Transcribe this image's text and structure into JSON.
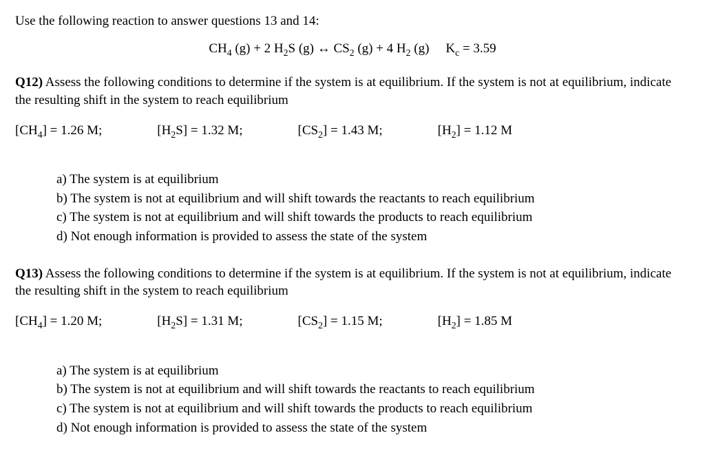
{
  "intro": "Use the following reaction to answer questions 13 and 14:",
  "equation": {
    "lhs1": "CH",
    "lhs1_sub": "4",
    "lhs1_phase": " (g) + 2 H",
    "lhs2_sub": "2",
    "lhs2": "S (g) ↔ CS",
    "rhs1_sub": "2",
    "rhs1": " (g) + 4 H",
    "rhs2_sub": "2",
    "rhs2_phase": " (g)",
    "kc_label": "K",
    "kc_sub": "c",
    "kc_val": " = 3.59"
  },
  "q12": {
    "num": "Q12)",
    "text": " Assess the following conditions to determine if the system is at equilibrium. If the system is not at equilibrium, indicate the resulting shift in the system to reach equilibrium",
    "conc": {
      "ch4": "] = 1.26 M;",
      "h2s": "S] = 1.32 M;",
      "cs2": "] = 1.43 M;",
      "h2": "] = 1.12 M"
    }
  },
  "q13": {
    "num": "Q13)",
    "text": " Assess the following conditions to determine if the system is at equilibrium. If the system is not at equilibrium, indicate the resulting shift in the system to reach equilibrium",
    "conc": {
      "ch4": "] = 1.20 M;",
      "h2s": "S] = 1.31 M;",
      "cs2": "] = 1.15 M;",
      "h2": "] = 1.85 M"
    }
  },
  "labels": {
    "ch4_pre": "[CH",
    "ch4_sub": "4",
    "h2s_pre": "[H",
    "h2s_sub": "2",
    "cs2_pre": "[CS",
    "cs2_sub": "2",
    "h2_pre": "[H",
    "h2_sub": "2"
  },
  "options": {
    "a": "a) The system is at equilibrium",
    "b": "b) The system is not at equilibrium and will shift towards the reactants to reach equilibrium",
    "c": "c) The system is not at equilibrium and will shift towards the products to reach equilibrium",
    "d": "d) Not enough information is provided to assess the state of the system"
  }
}
